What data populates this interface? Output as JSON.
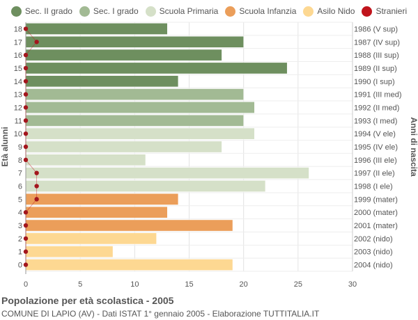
{
  "chart_data": {
    "type": "bar",
    "orientation": "horizontal",
    "ages": [
      18,
      17,
      16,
      15,
      14,
      13,
      12,
      11,
      10,
      9,
      8,
      7,
      6,
      5,
      4,
      3,
      2,
      1,
      0
    ],
    "birth_years": [
      "1986 (V sup)",
      "1987 (IV sup)",
      "1988 (III sup)",
      "1989 (II sup)",
      "1990 (I sup)",
      "1991 (III med)",
      "1992 (II med)",
      "1993 (I med)",
      "1994 (V ele)",
      "1995 (IV ele)",
      "1996 (III ele)",
      "1997 (II ele)",
      "1998 (I ele)",
      "1999 (mater)",
      "2000 (mater)",
      "2001 (mater)",
      "2002 (nido)",
      "2003 (nido)",
      "2004 (nido)"
    ],
    "values": [
      13,
      20,
      18,
      24,
      14,
      20,
      21,
      20,
      21,
      18,
      11,
      26,
      22,
      14,
      13,
      19,
      12,
      8,
      19
    ],
    "stranieri": [
      0,
      1,
      0,
      0,
      0,
      0,
      0,
      0,
      0,
      0,
      0,
      1,
      1,
      1,
      0,
      0,
      0,
      0,
      0
    ],
    "groups": [
      "sec2",
      "sec2",
      "sec2",
      "sec2",
      "sec2",
      "sec1",
      "sec1",
      "sec1",
      "prim",
      "prim",
      "prim",
      "prim",
      "prim",
      "inf",
      "inf",
      "inf",
      "nido",
      "nido",
      "nido"
    ],
    "xlim": [
      0,
      30
    ],
    "xticks": [
      0,
      5,
      10,
      15,
      20,
      25,
      30
    ],
    "ylabel": "Età alunni",
    "ylabel_right": "Anni di nascita",
    "grid": true
  },
  "legend": [
    {
      "key": "sec2",
      "label": "Sec. II grado",
      "color": "#6e8f5f"
    },
    {
      "key": "sec1",
      "label": "Sec. I grado",
      "color": "#a2ba94"
    },
    {
      "key": "prim",
      "label": "Scuola Primaria",
      "color": "#d5e0c8"
    },
    {
      "key": "inf",
      "label": "Scuola Infanzia",
      "color": "#eb9e5a"
    },
    {
      "key": "nido",
      "label": "Asilo Nido",
      "color": "#fdd892"
    },
    {
      "key": "stranieri",
      "label": "Stranieri",
      "color": "#c0141c"
    }
  ],
  "footer": {
    "title": "Popolazione per età scolastica - 2005",
    "subtitle": "COMUNE DI LAPIO (AV) - Dati ISTAT 1° gennaio 2005 - Elaborazione TUTTITALIA.IT"
  }
}
